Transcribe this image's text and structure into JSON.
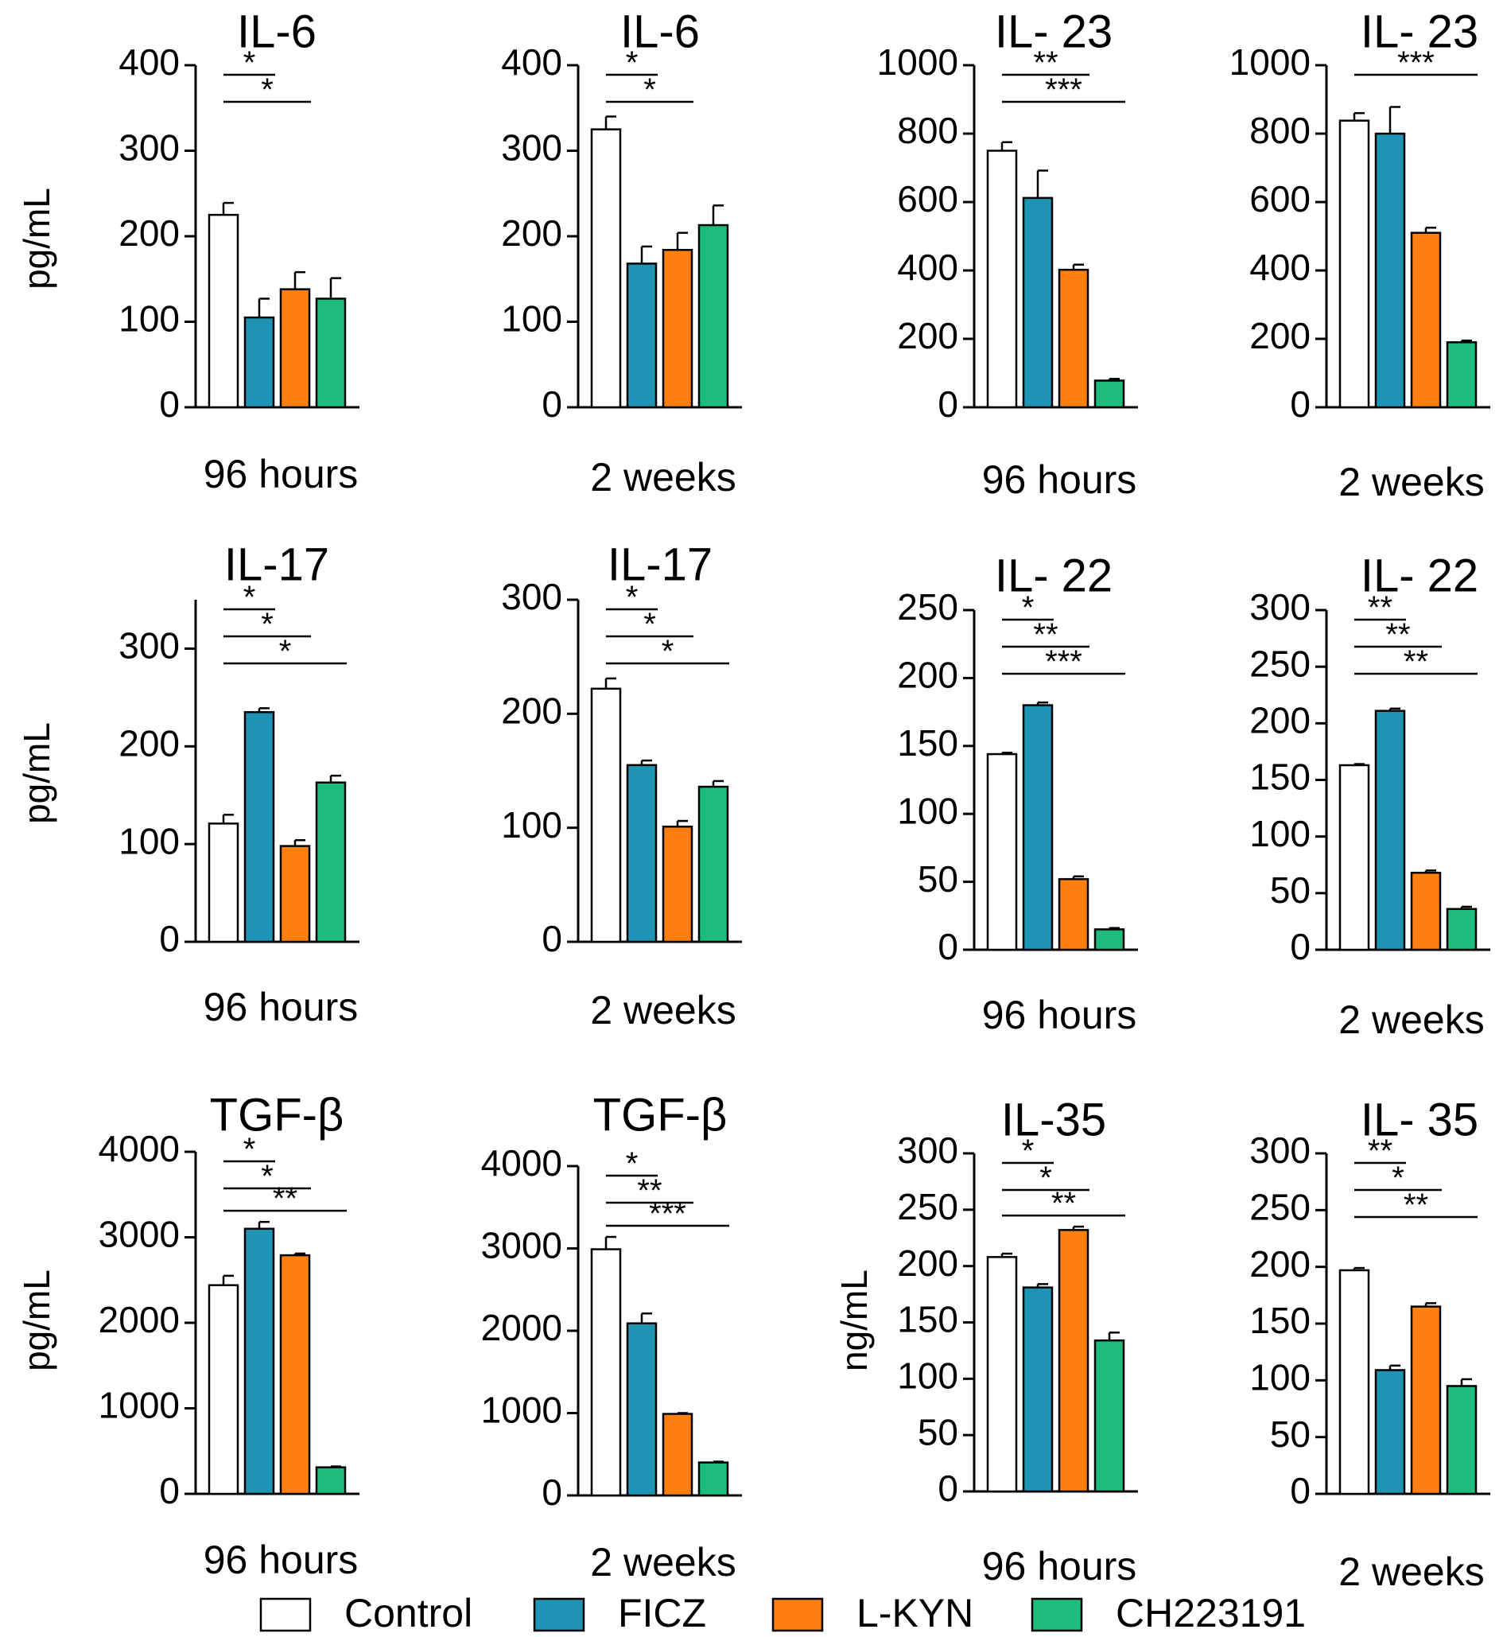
{
  "legend": [
    {
      "label": "Control",
      "color": "#ffffff"
    },
    {
      "label": "FICZ",
      "color": "#1e93b3"
    },
    {
      "label": "L-KYN",
      "color": "#ff7f11"
    },
    {
      "label": "CH223191",
      "color": "#1dbc7c"
    }
  ],
  "chart_data": [
    {
      "type": "bar",
      "title": "IL-6",
      "ylabel": "pg/mL",
      "xlabel": "96 hours",
      "ylim": [
        0,
        400
      ],
      "yticks": [
        "0",
        "100",
        "200",
        "300",
        "400"
      ],
      "categories": [
        "Control",
        "FICZ",
        "L-KYN",
        "CH223191"
      ],
      "values": [
        225,
        105,
        138,
        127
      ],
      "errors": [
        14,
        22,
        20,
        24
      ],
      "significance": [
        {
          "from": 0,
          "to": 1,
          "label": "*"
        },
        {
          "from": 0,
          "to": 2,
          "label": "*"
        }
      ]
    },
    {
      "type": "bar",
      "title": "IL-6",
      "ylabel": "",
      "xlabel": "2 weeks",
      "ylim": [
        0,
        400
      ],
      "yticks": [
        "0",
        "100",
        "200",
        "300",
        "400"
      ],
      "categories": [
        "Control",
        "FICZ",
        "L-KYN",
        "CH223191"
      ],
      "values": [
        325,
        168,
        184,
        213
      ],
      "errors": [
        15,
        20,
        20,
        23
      ],
      "significance": [
        {
          "from": 0,
          "to": 1,
          "label": "*"
        },
        {
          "from": 0,
          "to": 2,
          "label": "*"
        }
      ]
    },
    {
      "type": "bar",
      "title": "IL- 23",
      "ylabel": "",
      "xlabel": "96 hours",
      "ylim": [
        0,
        1000
      ],
      "yticks": [
        "0",
        "200",
        "400",
        "600",
        "800",
        "1000"
      ],
      "categories": [
        "Control",
        "FICZ",
        "L-KYN",
        "CH223191"
      ],
      "values": [
        750,
        612,
        402,
        78
      ],
      "errors": [
        25,
        80,
        15,
        5
      ],
      "significance": [
        {
          "from": 0,
          "to": 2,
          "label": "**"
        },
        {
          "from": 0,
          "to": 3,
          "label": "***"
        }
      ]
    },
    {
      "type": "bar",
      "title": "IL- 23",
      "ylabel": "",
      "xlabel": "2 weeks",
      "ylim": [
        0,
        1000
      ],
      "yticks": [
        "0",
        "200",
        "400",
        "600",
        "800",
        "1000"
      ],
      "categories": [
        "Control",
        "FICZ",
        "L-KYN",
        "CH223191"
      ],
      "values": [
        838,
        800,
        510,
        190
      ],
      "errors": [
        22,
        78,
        15,
        5
      ],
      "significance": [
        {
          "from": 0,
          "to": 3,
          "label": "***"
        }
      ]
    },
    {
      "type": "bar",
      "title": "IL-17",
      "ylabel": "pg/mL",
      "xlabel": "96 hours",
      "ylim": [
        0,
        350
      ],
      "yticks": [
        "0",
        "100",
        "200",
        "300"
      ],
      "categories": [
        "Control",
        "FICZ",
        "L-KYN",
        "CH223191"
      ],
      "values": [
        121,
        235,
        98,
        163
      ],
      "errors": [
        9,
        4,
        6,
        7
      ],
      "significance": [
        {
          "from": 0,
          "to": 1,
          "label": "*"
        },
        {
          "from": 0,
          "to": 2,
          "label": "*"
        },
        {
          "from": 0,
          "to": 3,
          "label": "*"
        }
      ]
    },
    {
      "type": "bar",
      "title": "IL-17",
      "ylabel": "",
      "xlabel": "2 weeks",
      "ylim": [
        0,
        300
      ],
      "yticks": [
        "0",
        "100",
        "200",
        "300"
      ],
      "categories": [
        "Control",
        "FICZ",
        "L-KYN",
        "CH223191"
      ],
      "values": [
        222,
        155,
        101,
        136
      ],
      "errors": [
        9,
        4,
        5,
        5
      ],
      "significance": [
        {
          "from": 0,
          "to": 1,
          "label": "*"
        },
        {
          "from": 0,
          "to": 2,
          "label": "*"
        },
        {
          "from": 0,
          "to": 3,
          "label": "*"
        }
      ]
    },
    {
      "type": "bar",
      "title": "IL- 22",
      "ylabel": "",
      "xlabel": "96 hours",
      "ylim": [
        0,
        250
      ],
      "yticks": [
        "0",
        "50",
        "100",
        "150",
        "200",
        "250"
      ],
      "categories": [
        "Control",
        "FICZ",
        "L-KYN",
        "CH223191"
      ],
      "values": [
        144,
        180,
        52,
        15
      ],
      "errors": [
        1,
        2,
        2,
        1
      ],
      "significance": [
        {
          "from": 0,
          "to": 1,
          "label": "*"
        },
        {
          "from": 0,
          "to": 2,
          "label": "**"
        },
        {
          "from": 0,
          "to": 3,
          "label": "***"
        }
      ]
    },
    {
      "type": "bar",
      "title": "IL- 22",
      "ylabel": "",
      "xlabel": "2 weeks",
      "ylim": [
        0,
        300
      ],
      "yticks": [
        "0",
        "50",
        "100",
        "150",
        "200",
        "250",
        "300"
      ],
      "categories": [
        "Control",
        "FICZ",
        "L-KYN",
        "CH223191"
      ],
      "values": [
        163,
        211,
        68,
        36
      ],
      "errors": [
        1,
        2,
        2,
        2
      ],
      "significance": [
        {
          "from": 0,
          "to": 1,
          "label": "**"
        },
        {
          "from": 0,
          "to": 2,
          "label": "**"
        },
        {
          "from": 0,
          "to": 3,
          "label": "**"
        }
      ]
    },
    {
      "type": "bar",
      "title": "TGF-β",
      "ylabel": "pg/mL",
      "xlabel": "96 hours",
      "ylim": [
        0,
        4000
      ],
      "yticks": [
        "0",
        "1000",
        "2000",
        "3000",
        "4000"
      ],
      "categories": [
        "Control",
        "FICZ",
        "L-KYN",
        "CH223191"
      ],
      "values": [
        2440,
        3100,
        2790,
        310
      ],
      "errors": [
        110,
        80,
        20,
        10
      ],
      "significance": [
        {
          "from": 0,
          "to": 1,
          "label": "*"
        },
        {
          "from": 0,
          "to": 2,
          "label": "*"
        },
        {
          "from": 0,
          "to": 3,
          "label": "**"
        }
      ]
    },
    {
      "type": "bar",
      "title": "TGF-β",
      "ylabel": "",
      "xlabel": "2 weeks",
      "ylim": [
        0,
        4000
      ],
      "yticks": [
        "0",
        "1000",
        "2000",
        "3000",
        "4000"
      ],
      "categories": [
        "Control",
        "FICZ",
        "L-KYN",
        "CH223191"
      ],
      "values": [
        2990,
        2090,
        990,
        400
      ],
      "errors": [
        150,
        120,
        10,
        10
      ],
      "significance": [
        {
          "from": 0,
          "to": 1,
          "label": "*"
        },
        {
          "from": 0,
          "to": 2,
          "label": "**"
        },
        {
          "from": 0,
          "to": 3,
          "label": "***"
        }
      ]
    },
    {
      "type": "bar",
      "title": "IL-35",
      "ylabel": "ng/mL",
      "xlabel": "96 hours",
      "ylim": [
        0,
        300
      ],
      "yticks": [
        "0",
        "50",
        "100",
        "150",
        "200",
        "250",
        "300"
      ],
      "categories": [
        "Control",
        "FICZ",
        "L-KYN",
        "CH223191"
      ],
      "values": [
        208,
        181,
        232,
        134
      ],
      "errors": [
        3,
        3,
        3,
        7
      ],
      "significance": [
        {
          "from": 0,
          "to": 1,
          "label": "*"
        },
        {
          "from": 0,
          "to": 2,
          "label": "*"
        },
        {
          "from": 0,
          "to": 3,
          "label": "**"
        }
      ]
    },
    {
      "type": "bar",
      "title": "IL- 35",
      "ylabel": "",
      "xlabel": "2 weeks",
      "ylim": [
        0,
        300
      ],
      "yticks": [
        "0",
        "50",
        "100",
        "150",
        "200",
        "250",
        "300"
      ],
      "categories": [
        "Control",
        "FICZ",
        "L-KYN",
        "CH223191"
      ],
      "values": [
        197,
        109,
        165,
        95
      ],
      "errors": [
        2,
        4,
        3,
        6
      ],
      "significance": [
        {
          "from": 0,
          "to": 1,
          "label": "**"
        },
        {
          "from": 0,
          "to": 2,
          "label": "*"
        },
        {
          "from": 0,
          "to": 3,
          "label": "**"
        }
      ]
    }
  ]
}
